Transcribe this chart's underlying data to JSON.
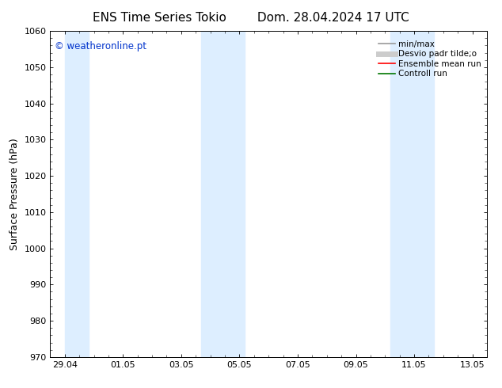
{
  "title_left": "ENS Time Series Tokio",
  "title_right": "Dom. 28.04.2024 17 UTC",
  "ylabel": "Surface Pressure (hPa)",
  "ylim": [
    970,
    1060
  ],
  "yticks": [
    970,
    980,
    990,
    1000,
    1010,
    1020,
    1030,
    1040,
    1050,
    1060
  ],
  "xtick_labels": [
    "29.04",
    "01.05",
    "03.05",
    "05.05",
    "07.05",
    "09.05",
    "11.05",
    "13.05"
  ],
  "shaded_bands": [
    {
      "x_start": 0.0,
      "x_end": 0.83
    },
    {
      "x_start": 4.67,
      "x_end": 6.17
    },
    {
      "x_start": 11.17,
      "x_end": 12.67
    }
  ],
  "watermark": "© weatheronline.pt",
  "watermark_color": "#0033cc",
  "background_color": "#ffffff",
  "plot_bg_color": "#ffffff",
  "band_color": "#ddeeff",
  "legend_items": [
    {
      "label": "min/max",
      "color": "#999999",
      "lw": 1.2
    },
    {
      "label": "Desvio padr tilde;o",
      "color": "#cccccc",
      "lw": 5
    },
    {
      "label": "Ensemble mean run",
      "color": "#ff0000",
      "lw": 1.2
    },
    {
      "label": "Controll run",
      "color": "#007700",
      "lw": 1.2
    }
  ],
  "title_fontsize": 11,
  "label_fontsize": 9,
  "tick_fontsize": 8,
  "legend_fontsize": 7.5,
  "xlim": [
    -0.5,
    14.5
  ],
  "xtick_positions": [
    0,
    2,
    4,
    6,
    8,
    10,
    12,
    14
  ]
}
